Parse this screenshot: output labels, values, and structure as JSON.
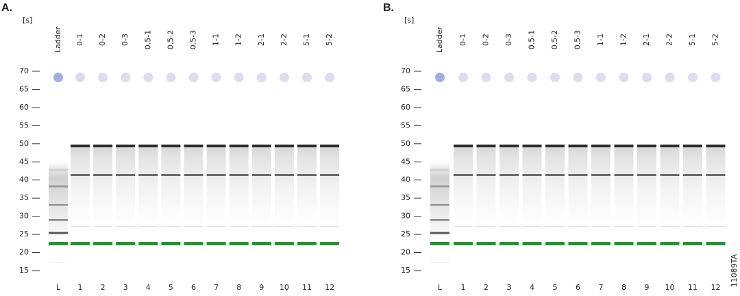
{
  "panels": [
    {
      "label": "A.",
      "unit": "[s]",
      "yticks": [
        70,
        65,
        60,
        55,
        50,
        45,
        40,
        35,
        30,
        25,
        20,
        15
      ],
      "lanes": [
        "Ladder",
        "0-1",
        "0-2",
        "0-3",
        "0.5-1",
        "0.5-2",
        "0.5-3",
        "1-1",
        "1-2",
        "2-1",
        "2-2",
        "5-1",
        "5-2"
      ],
      "lane_numbers": [
        "L",
        "1",
        "2",
        "3",
        "4",
        "5",
        "6",
        "7",
        "8",
        "9",
        "10",
        "11",
        "12"
      ]
    },
    {
      "label": "B.",
      "unit": "[s]",
      "yticks": [
        70,
        65,
        60,
        55,
        50,
        45,
        40,
        35,
        30,
        25,
        20,
        15
      ],
      "lanes": [
        "Ladder",
        "0-1",
        "0-2",
        "0-3",
        "0.5-1",
        "0.5-2",
        "0.5-3",
        "1-1",
        "1-2",
        "2-1",
        "2-2",
        "5-1",
        "5-2"
      ],
      "lane_numbers": [
        "L",
        "1",
        "2",
        "3",
        "4",
        "5",
        "6",
        "7",
        "8",
        "9",
        "10",
        "11",
        "12"
      ]
    }
  ],
  "figure_id": "11089TA"
}
